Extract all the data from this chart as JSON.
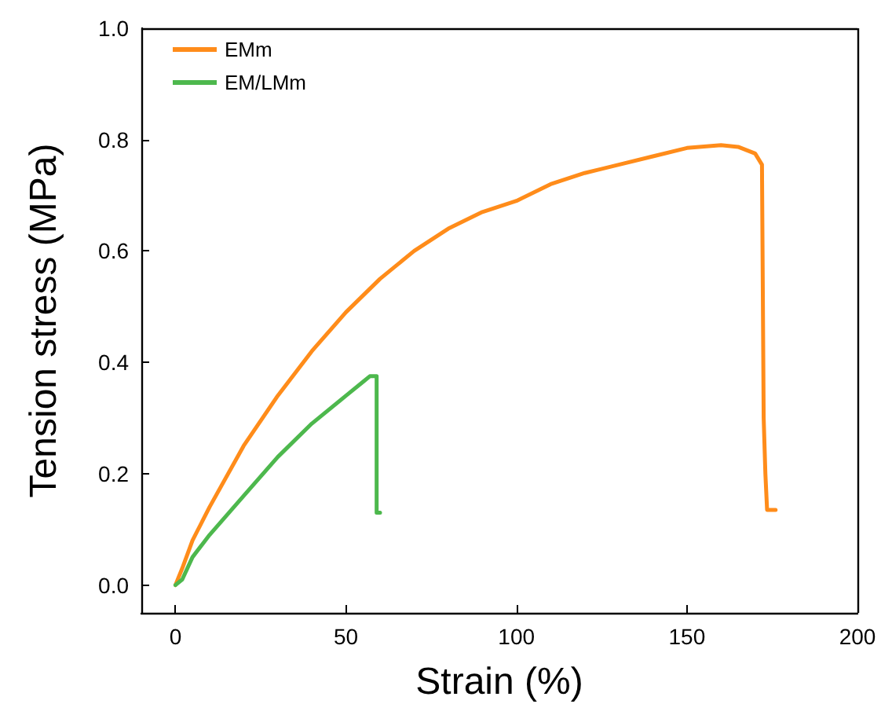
{
  "chart_data": {
    "type": "line",
    "xlabel": "Strain (%)",
    "ylabel": "Tension stress (MPa)",
    "xlim": [
      -10,
      200
    ],
    "xticks": [
      0,
      50,
      100,
      150,
      200
    ],
    "ylim": [
      -0.05,
      1.0
    ],
    "yticks": [
      {
        "value": 0,
        "label": "0.0"
      },
      {
        "value": 0.2,
        "label": "0.2"
      },
      {
        "value": 0.4,
        "label": "0.4"
      },
      {
        "value": 0.6,
        "label": "0.6"
      },
      {
        "value": 0.8,
        "label": "0.8"
      },
      {
        "value": 1,
        "label": "1.0"
      }
    ],
    "grid": false,
    "legend": "top left",
    "marker": "none",
    "line_style": "solid",
    "series": [
      {
        "name": "EMm",
        "color": "#ff8c1a",
        "x": [
          0,
          2,
          5,
          10,
          20,
          30,
          40,
          50,
          60,
          70,
          80,
          90,
          100,
          110,
          120,
          130,
          140,
          150,
          160,
          165,
          170,
          172,
          172.5,
          173,
          173.5,
          176
        ],
        "values": [
          0,
          0.03,
          0.08,
          0.14,
          0.25,
          0.34,
          0.42,
          0.49,
          0.55,
          0.6,
          0.64,
          0.67,
          0.69,
          0.72,
          0.74,
          0.755,
          0.77,
          0.785,
          0.79,
          0.787,
          0.775,
          0.755,
          0.3,
          0.2,
          0.135,
          0.135
        ]
      },
      {
        "name": "EM/LMm",
        "color": "#4db84d",
        "x": [
          0,
          2,
          5,
          10,
          20,
          30,
          40,
          50,
          55,
          57,
          59,
          59,
          60
        ],
        "values": [
          0,
          0.01,
          0.05,
          0.09,
          0.16,
          0.23,
          0.29,
          0.34,
          0.365,
          0.375,
          0.375,
          0.13,
          0.13
        ]
      }
    ]
  }
}
